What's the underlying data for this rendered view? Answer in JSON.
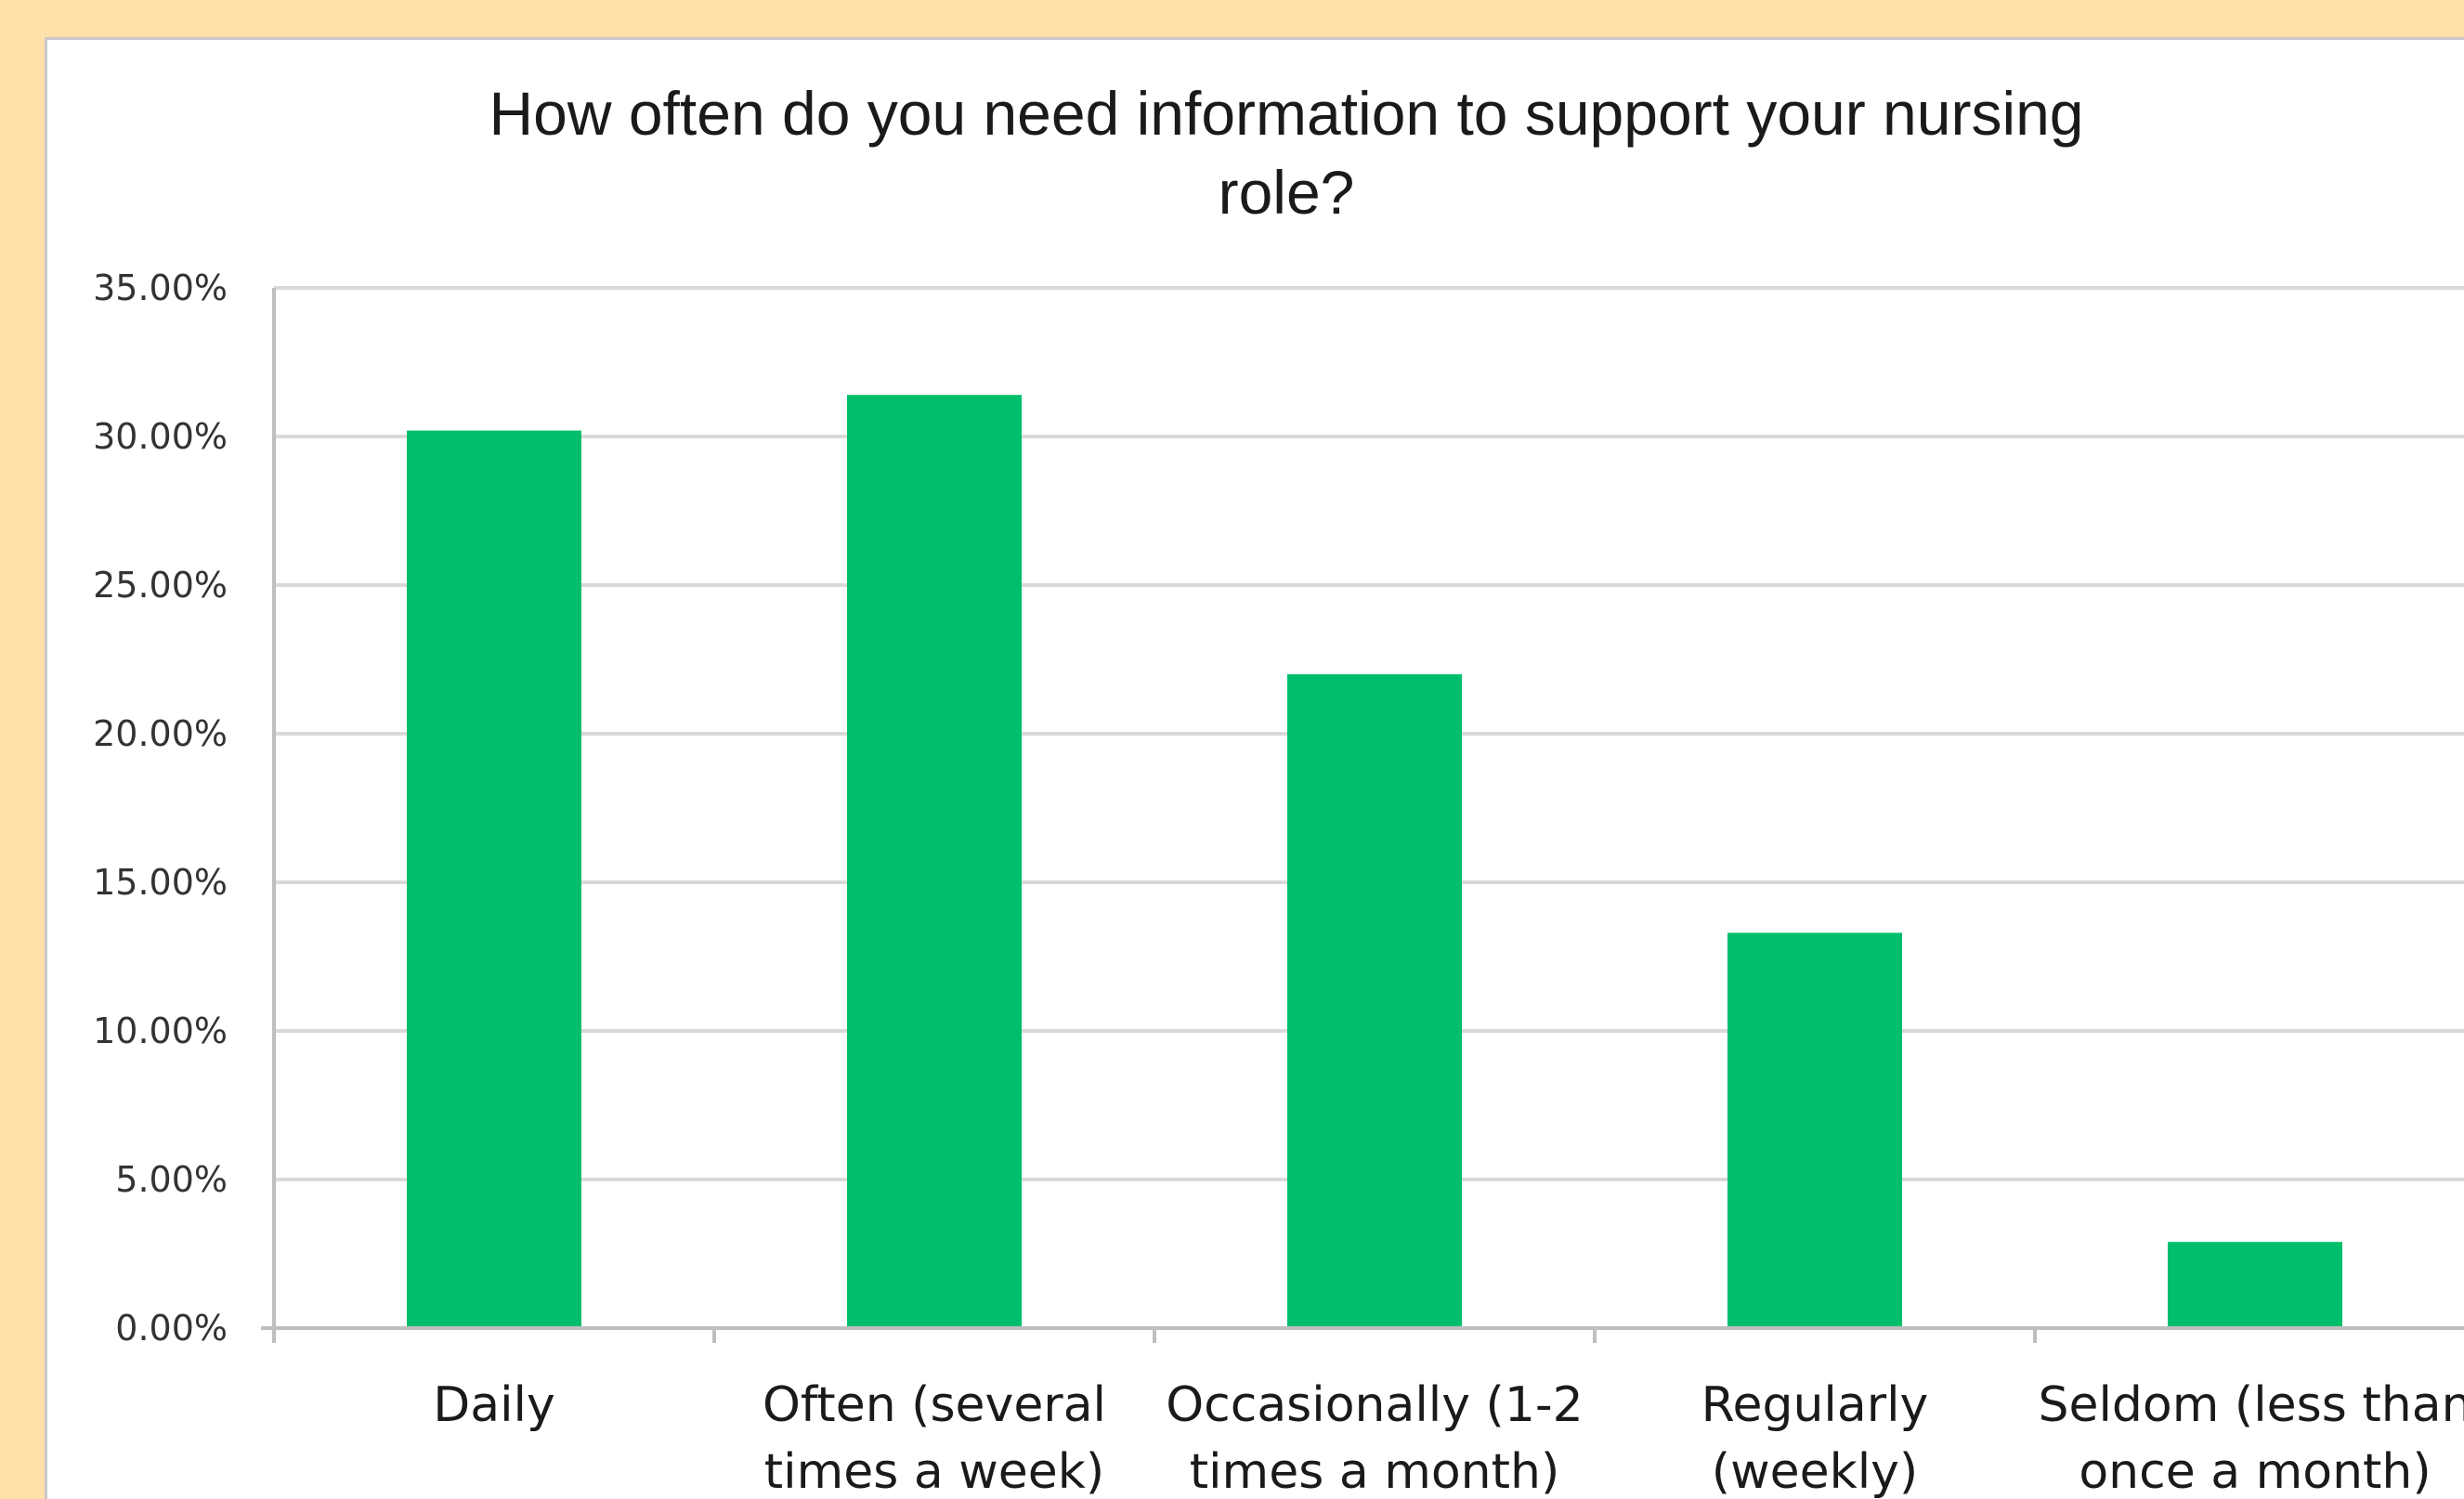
{
  "chart_data": {
    "type": "bar",
    "title": "How often do you need information to support your nursing role?",
    "title_lines": [
      "How often do you need information to support your nursing",
      "role?"
    ],
    "categories": [
      "Daily",
      "Often (several times a week)",
      "Occasionally (1-2 times a month)",
      "Regularly (weekly)",
      "Seldom (less than once a month)"
    ],
    "category_lines": [
      [
        "Daily"
      ],
      [
        "Often (several",
        "times a week)"
      ],
      [
        "Occasionally (1-2",
        "times a month)"
      ],
      [
        "Regularly",
        "(weekly)"
      ],
      [
        "Seldom (less than",
        "once a month)"
      ]
    ],
    "values": [
      30.2,
      31.4,
      22.0,
      13.3,
      2.9
    ],
    "value_unit": "%",
    "ylim": [
      0,
      35
    ],
    "yticks": [
      "0.00%",
      "5.00%",
      "10.00%",
      "15.00%",
      "20.00%",
      "25.00%",
      "30.00%",
      "35.00%"
    ],
    "grid": true,
    "legend": "none",
    "xlabel": "",
    "ylabel": "",
    "bar_color": "#00BE6B"
  },
  "colors": {
    "page_background": "#FFE0A8",
    "plot_background": "#FFFFFF",
    "gridline": "#D9D9D9",
    "axis": "#BFBFBF"
  }
}
